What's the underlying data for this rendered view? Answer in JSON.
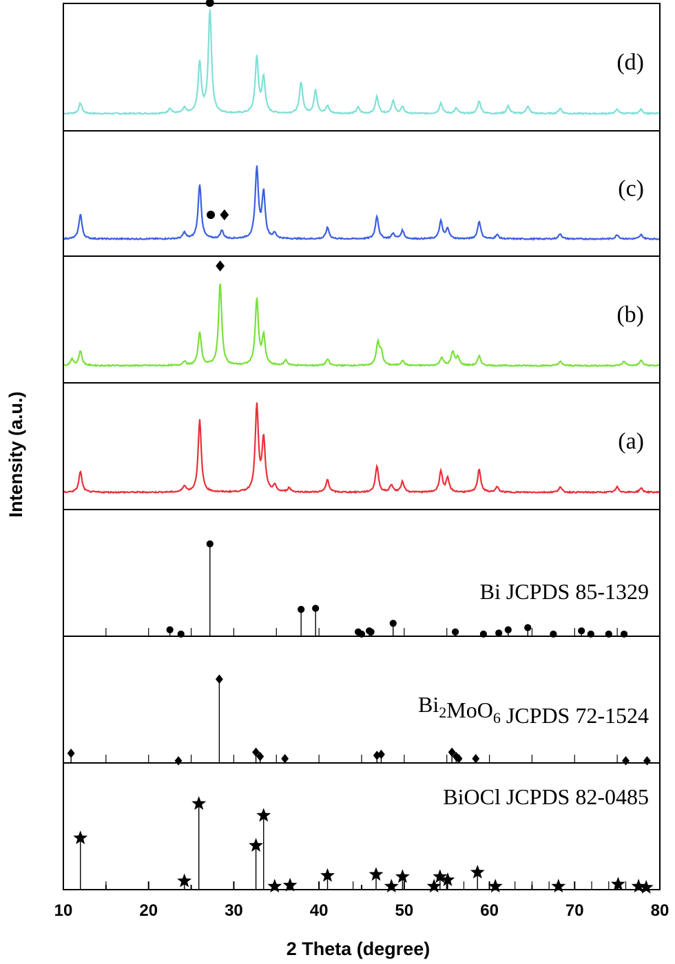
{
  "chart_data": {
    "type": "line",
    "xlabel": "2 Theta (degree)",
    "ylabel": "Intensity (a.u.)",
    "xlim": [
      10,
      80
    ],
    "x_ticks": [
      "10",
      "20",
      "30",
      "40",
      "50",
      "60",
      "70",
      "80"
    ],
    "curves": [
      {
        "label": "(d)",
        "color": "#7fe0d6",
        "peaks": [
          [
            12.0,
            0.1
          ],
          [
            22.5,
            0.05
          ],
          [
            24.2,
            0.05
          ],
          [
            26.0,
            0.48
          ],
          [
            27.2,
            0.98
          ],
          [
            32.7,
            0.53
          ],
          [
            33.5,
            0.34
          ],
          [
            37.9,
            0.3
          ],
          [
            39.6,
            0.22
          ],
          [
            41.0,
            0.07
          ],
          [
            44.6,
            0.06
          ],
          [
            46.8,
            0.16
          ],
          [
            48.7,
            0.12
          ],
          [
            49.8,
            0.06
          ],
          [
            54.3,
            0.1
          ],
          [
            56.1,
            0.05
          ],
          [
            58.8,
            0.12
          ],
          [
            62.2,
            0.07
          ],
          [
            64.5,
            0.07
          ],
          [
            68.3,
            0.05
          ],
          [
            75.0,
            0.04
          ],
          [
            77.8,
            0.04
          ]
        ],
        "markers": [
          {
            "x": 27.2,
            "y": 1.0,
            "shape": "circle"
          }
        ]
      },
      {
        "label": "(c)",
        "color": "#3b5fe0",
        "peaks": [
          [
            12.0,
            0.24
          ],
          [
            24.2,
            0.06
          ],
          [
            26.0,
            0.53
          ],
          [
            28.6,
            0.08
          ],
          [
            32.7,
            0.68
          ],
          [
            33.5,
            0.44
          ],
          [
            34.8,
            0.05
          ],
          [
            41.0,
            0.11
          ],
          [
            46.8,
            0.22
          ],
          [
            48.7,
            0.05
          ],
          [
            49.8,
            0.08
          ],
          [
            54.3,
            0.17
          ],
          [
            55.1,
            0.1
          ],
          [
            58.8,
            0.17
          ],
          [
            60.9,
            0.04
          ],
          [
            68.3,
            0.05
          ],
          [
            75.0,
            0.04
          ],
          [
            77.8,
            0.04
          ]
        ],
        "markers": [
          {
            "x": 27.3,
            "y": 0.18,
            "shape": "circle"
          },
          {
            "x": 28.9,
            "y": 0.18,
            "shape": "diamond"
          }
        ]
      },
      {
        "label": "(b)",
        "color": "#7ae03a",
        "peaks": [
          [
            11.0,
            0.06
          ],
          [
            12.0,
            0.14
          ],
          [
            24.2,
            0.04
          ],
          [
            26.0,
            0.32
          ],
          [
            28.4,
            0.79
          ],
          [
            32.7,
            0.63
          ],
          [
            33.5,
            0.27
          ],
          [
            36.1,
            0.05
          ],
          [
            41.0,
            0.06
          ],
          [
            46.9,
            0.21
          ],
          [
            47.3,
            0.12
          ],
          [
            49.8,
            0.05
          ],
          [
            54.4,
            0.08
          ],
          [
            55.7,
            0.13
          ],
          [
            56.3,
            0.08
          ],
          [
            58.8,
            0.09
          ],
          [
            68.3,
            0.04
          ],
          [
            75.8,
            0.04
          ],
          [
            77.8,
            0.05
          ]
        ],
        "markers": [
          {
            "x": 28.4,
            "y": 0.9,
            "shape": "diamond"
          }
        ]
      },
      {
        "label": "(a)",
        "color": "#e8303a",
        "peaks": [
          [
            12.0,
            0.2
          ],
          [
            24.2,
            0.06
          ],
          [
            26.0,
            0.69
          ],
          [
            32.7,
            0.82
          ],
          [
            33.5,
            0.5
          ],
          [
            34.8,
            0.06
          ],
          [
            36.5,
            0.04
          ],
          [
            41.0,
            0.12
          ],
          [
            46.8,
            0.25
          ],
          [
            48.5,
            0.07
          ],
          [
            49.8,
            0.1
          ],
          [
            54.3,
            0.2
          ],
          [
            55.1,
            0.13
          ],
          [
            58.8,
            0.22
          ],
          [
            60.9,
            0.05
          ],
          [
            68.3,
            0.05
          ],
          [
            75.0,
            0.05
          ],
          [
            77.8,
            0.04
          ]
        ],
        "markers": []
      }
    ],
    "references": [
      {
        "label_prefix": "Bi",
        "label_sub1": "",
        "label_mid": "",
        "label_sub2": "",
        "label_suffix": " JCPDS 85-1329",
        "marker": "circle",
        "lines": [
          [
            22.5,
            0.06
          ],
          [
            23.8,
            0.02
          ],
          [
            27.2,
            0.86
          ],
          [
            37.9,
            0.25
          ],
          [
            39.6,
            0.26
          ],
          [
            44.6,
            0.04
          ],
          [
            45.0,
            0.02
          ],
          [
            45.9,
            0.05
          ],
          [
            46.1,
            0.04
          ],
          [
            48.7,
            0.12
          ],
          [
            56.0,
            0.04
          ],
          [
            59.3,
            0.02
          ],
          [
            61.1,
            0.03
          ],
          [
            62.2,
            0.06
          ],
          [
            64.5,
            0.08
          ],
          [
            67.5,
            0.02
          ],
          [
            70.8,
            0.05
          ],
          [
            71.9,
            0.02
          ],
          [
            74.0,
            0.02
          ],
          [
            75.8,
            0.02
          ]
        ],
        "minor": [
          15.0,
          20.0,
          25.0,
          30.0,
          35.0,
          40.0,
          50.0,
          55.0,
          65.0,
          70.0,
          75.0
        ]
      },
      {
        "label_prefix": "Bi",
        "label_sub1": "2",
        "label_mid": "MoO",
        "label_sub2": "6",
        "label_suffix": " JCPDS 72-1524",
        "marker": "diamond",
        "lines": [
          [
            10.9,
            0.09
          ],
          [
            23.5,
            0.02
          ],
          [
            28.3,
            0.78
          ],
          [
            32.6,
            0.1
          ],
          [
            33.1,
            0.06
          ],
          [
            36.0,
            0.04
          ],
          [
            46.8,
            0.07
          ],
          [
            47.3,
            0.08
          ],
          [
            55.6,
            0.1
          ],
          [
            56.1,
            0.06
          ],
          [
            56.4,
            0.04
          ],
          [
            58.4,
            0.04
          ],
          [
            76.0,
            0.02
          ],
          [
            78.5,
            0.02
          ]
        ],
        "minor": [
          15.0,
          20.0,
          25.0,
          30.0,
          35.0,
          40.0,
          45.0,
          50.0,
          55.0,
          60.0,
          65.0,
          70.0,
          75.0
        ]
      },
      {
        "label_prefix": "BiOCl",
        "label_sub1": "",
        "label_mid": "",
        "label_sub2": "",
        "label_suffix": " JCPDS 82-0485",
        "marker": "star",
        "lines": [
          [
            12.0,
            0.48
          ],
          [
            24.2,
            0.08
          ],
          [
            25.9,
            0.8
          ],
          [
            32.6,
            0.41
          ],
          [
            33.5,
            0.69
          ],
          [
            34.8,
            0.03
          ],
          [
            36.6,
            0.04
          ],
          [
            41.0,
            0.13
          ],
          [
            46.7,
            0.14
          ],
          [
            48.5,
            0.03
          ],
          [
            49.8,
            0.12
          ],
          [
            53.5,
            0.03
          ],
          [
            54.2,
            0.12
          ],
          [
            55.1,
            0.09
          ],
          [
            58.6,
            0.16
          ],
          [
            60.7,
            0.03
          ],
          [
            68.1,
            0.03
          ],
          [
            75.1,
            0.05
          ],
          [
            77.5,
            0.03
          ],
          [
            78.4,
            0.02
          ]
        ],
        "minor": [
          15.0,
          20.0,
          30.0,
          40.0,
          44.0,
          50.0,
          55.0,
          57.0,
          60.0,
          63.0,
          65.0,
          67.0,
          70.0,
          72.0,
          74.0,
          76.0
        ]
      }
    ]
  }
}
